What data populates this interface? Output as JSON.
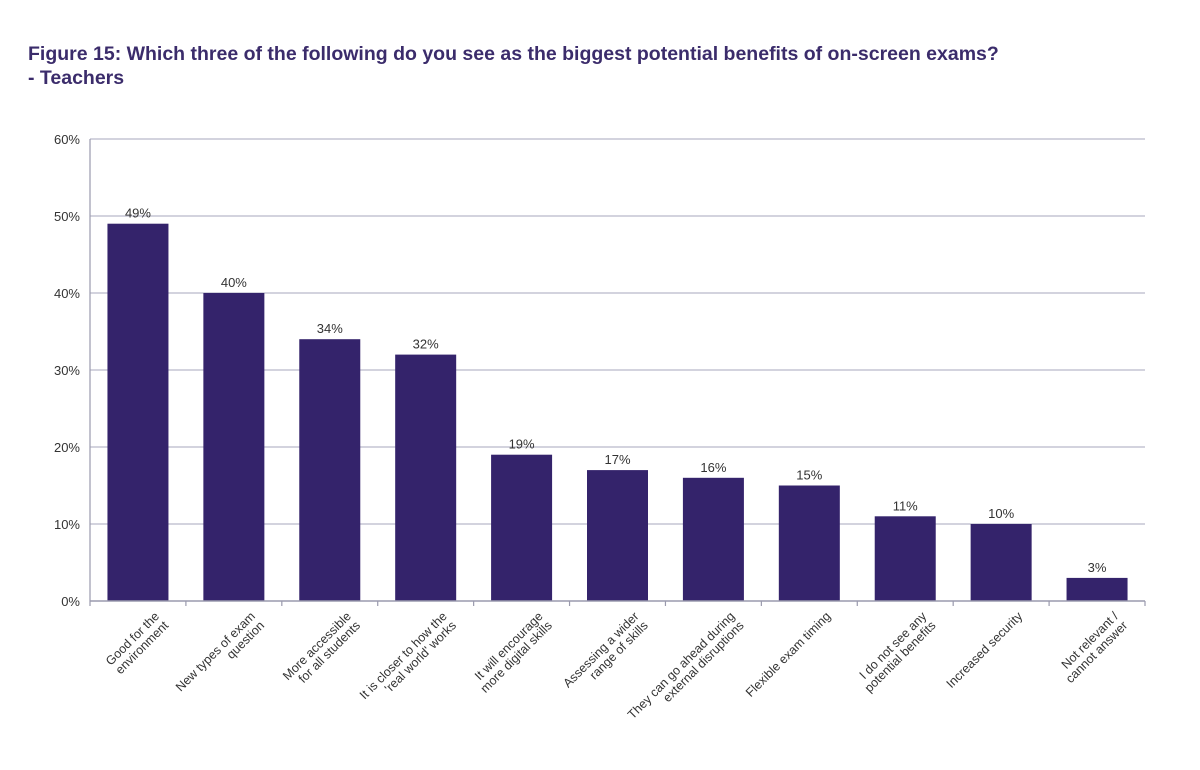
{
  "chart_data": {
    "type": "bar",
    "title": "Figure 15: Which three of the following do you see as the biggest potential benefits of on-screen exams?",
    "subtitle": "- Teachers",
    "categories": [
      [
        "Good for the",
        "environment"
      ],
      [
        "New types of exam",
        "question"
      ],
      [
        "More accessible",
        "for all students"
      ],
      [
        "It is closer to how the",
        "'real world' works"
      ],
      [
        "It will encourage",
        "more digital skills"
      ],
      [
        "Assessing a wider",
        "range of skills"
      ],
      [
        "They can go ahead during",
        "external disruptions"
      ],
      [
        "Flexible exam timing"
      ],
      [
        "I do not see any",
        "potential benefits"
      ],
      [
        "Increased security"
      ],
      [
        "Not relevant /",
        "cannot answer"
      ]
    ],
    "values": [
      49,
      40,
      34,
      32,
      19,
      17,
      16,
      15,
      11,
      10,
      3
    ],
    "data_labels": [
      "49%",
      "40%",
      "34%",
      "32%",
      "19%",
      "17%",
      "16%",
      "15%",
      "11%",
      "10%",
      "3%"
    ],
    "ylim": [
      0,
      60
    ],
    "yticks": [
      0,
      10,
      20,
      30,
      40,
      50,
      60
    ],
    "ytick_labels": [
      "0%",
      "10%",
      "20%",
      "30%",
      "40%",
      "50%",
      "60%"
    ],
    "xlabel": "",
    "ylabel": "",
    "grid": true,
    "bar_color": "#34236b",
    "grid_color": "#b9b9c9",
    "title_color": "#3b2c6b"
  }
}
